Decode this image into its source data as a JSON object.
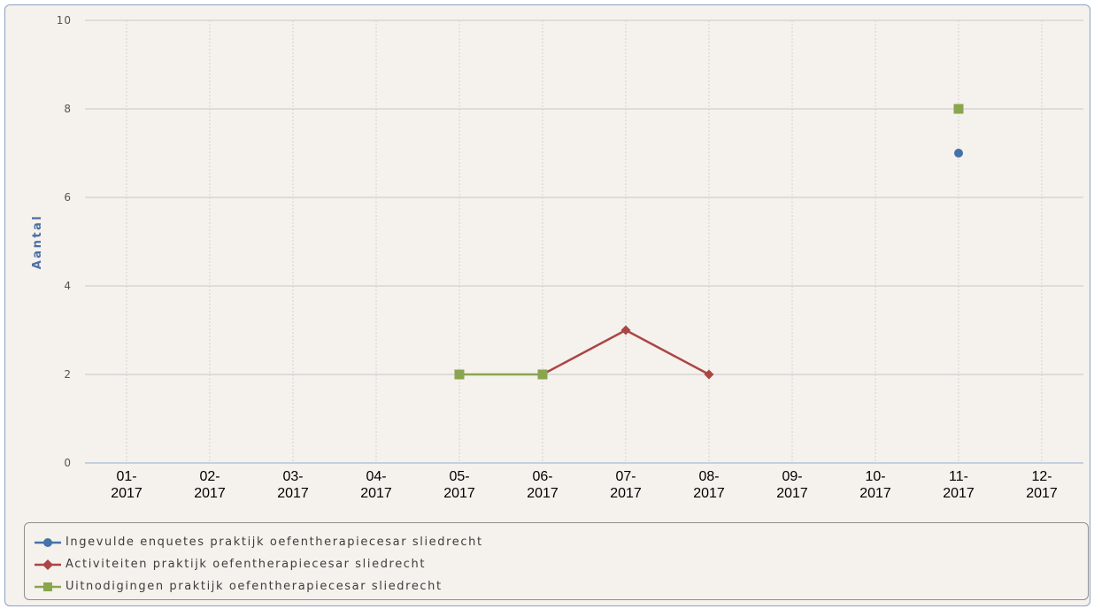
{
  "chart_data": {
    "type": "line",
    "title": "",
    "xlabel": "",
    "ylabel": "Aantal",
    "categories": [
      "01-\n2017",
      "02-\n2017",
      "03-\n2017",
      "04-\n2017",
      "05-\n2017",
      "06-\n2017",
      "07-\n2017",
      "08-\n2017",
      "09-\n2017",
      "10-\n2017",
      "11-\n2017",
      "12-\n2017"
    ],
    "ylim": [
      0,
      10
    ],
    "yticks": [
      0,
      2,
      4,
      6,
      8,
      10
    ],
    "grid": true,
    "legend_position": "bottom",
    "series": [
      {
        "name": "Ingevulde enquetes praktijk oefentherapiecesar sliedrecht",
        "color": "#4572a7",
        "marker": "circle",
        "values": [
          null,
          null,
          null,
          null,
          null,
          null,
          null,
          null,
          null,
          null,
          7,
          null
        ]
      },
      {
        "name": "Activiteiten praktijk oefentherapiecesar sliedrecht",
        "color": "#aa4643",
        "marker": "diamond",
        "values": [
          null,
          null,
          null,
          null,
          null,
          2,
          3,
          2,
          null,
          null,
          null,
          null
        ]
      },
      {
        "name": "Uitnodigingen praktijk oefentherapiecesar sliedrecht",
        "color": "#89a54e",
        "marker": "square",
        "values": [
          null,
          null,
          null,
          null,
          2,
          2,
          null,
          null,
          null,
          null,
          8,
          null
        ]
      }
    ]
  }
}
